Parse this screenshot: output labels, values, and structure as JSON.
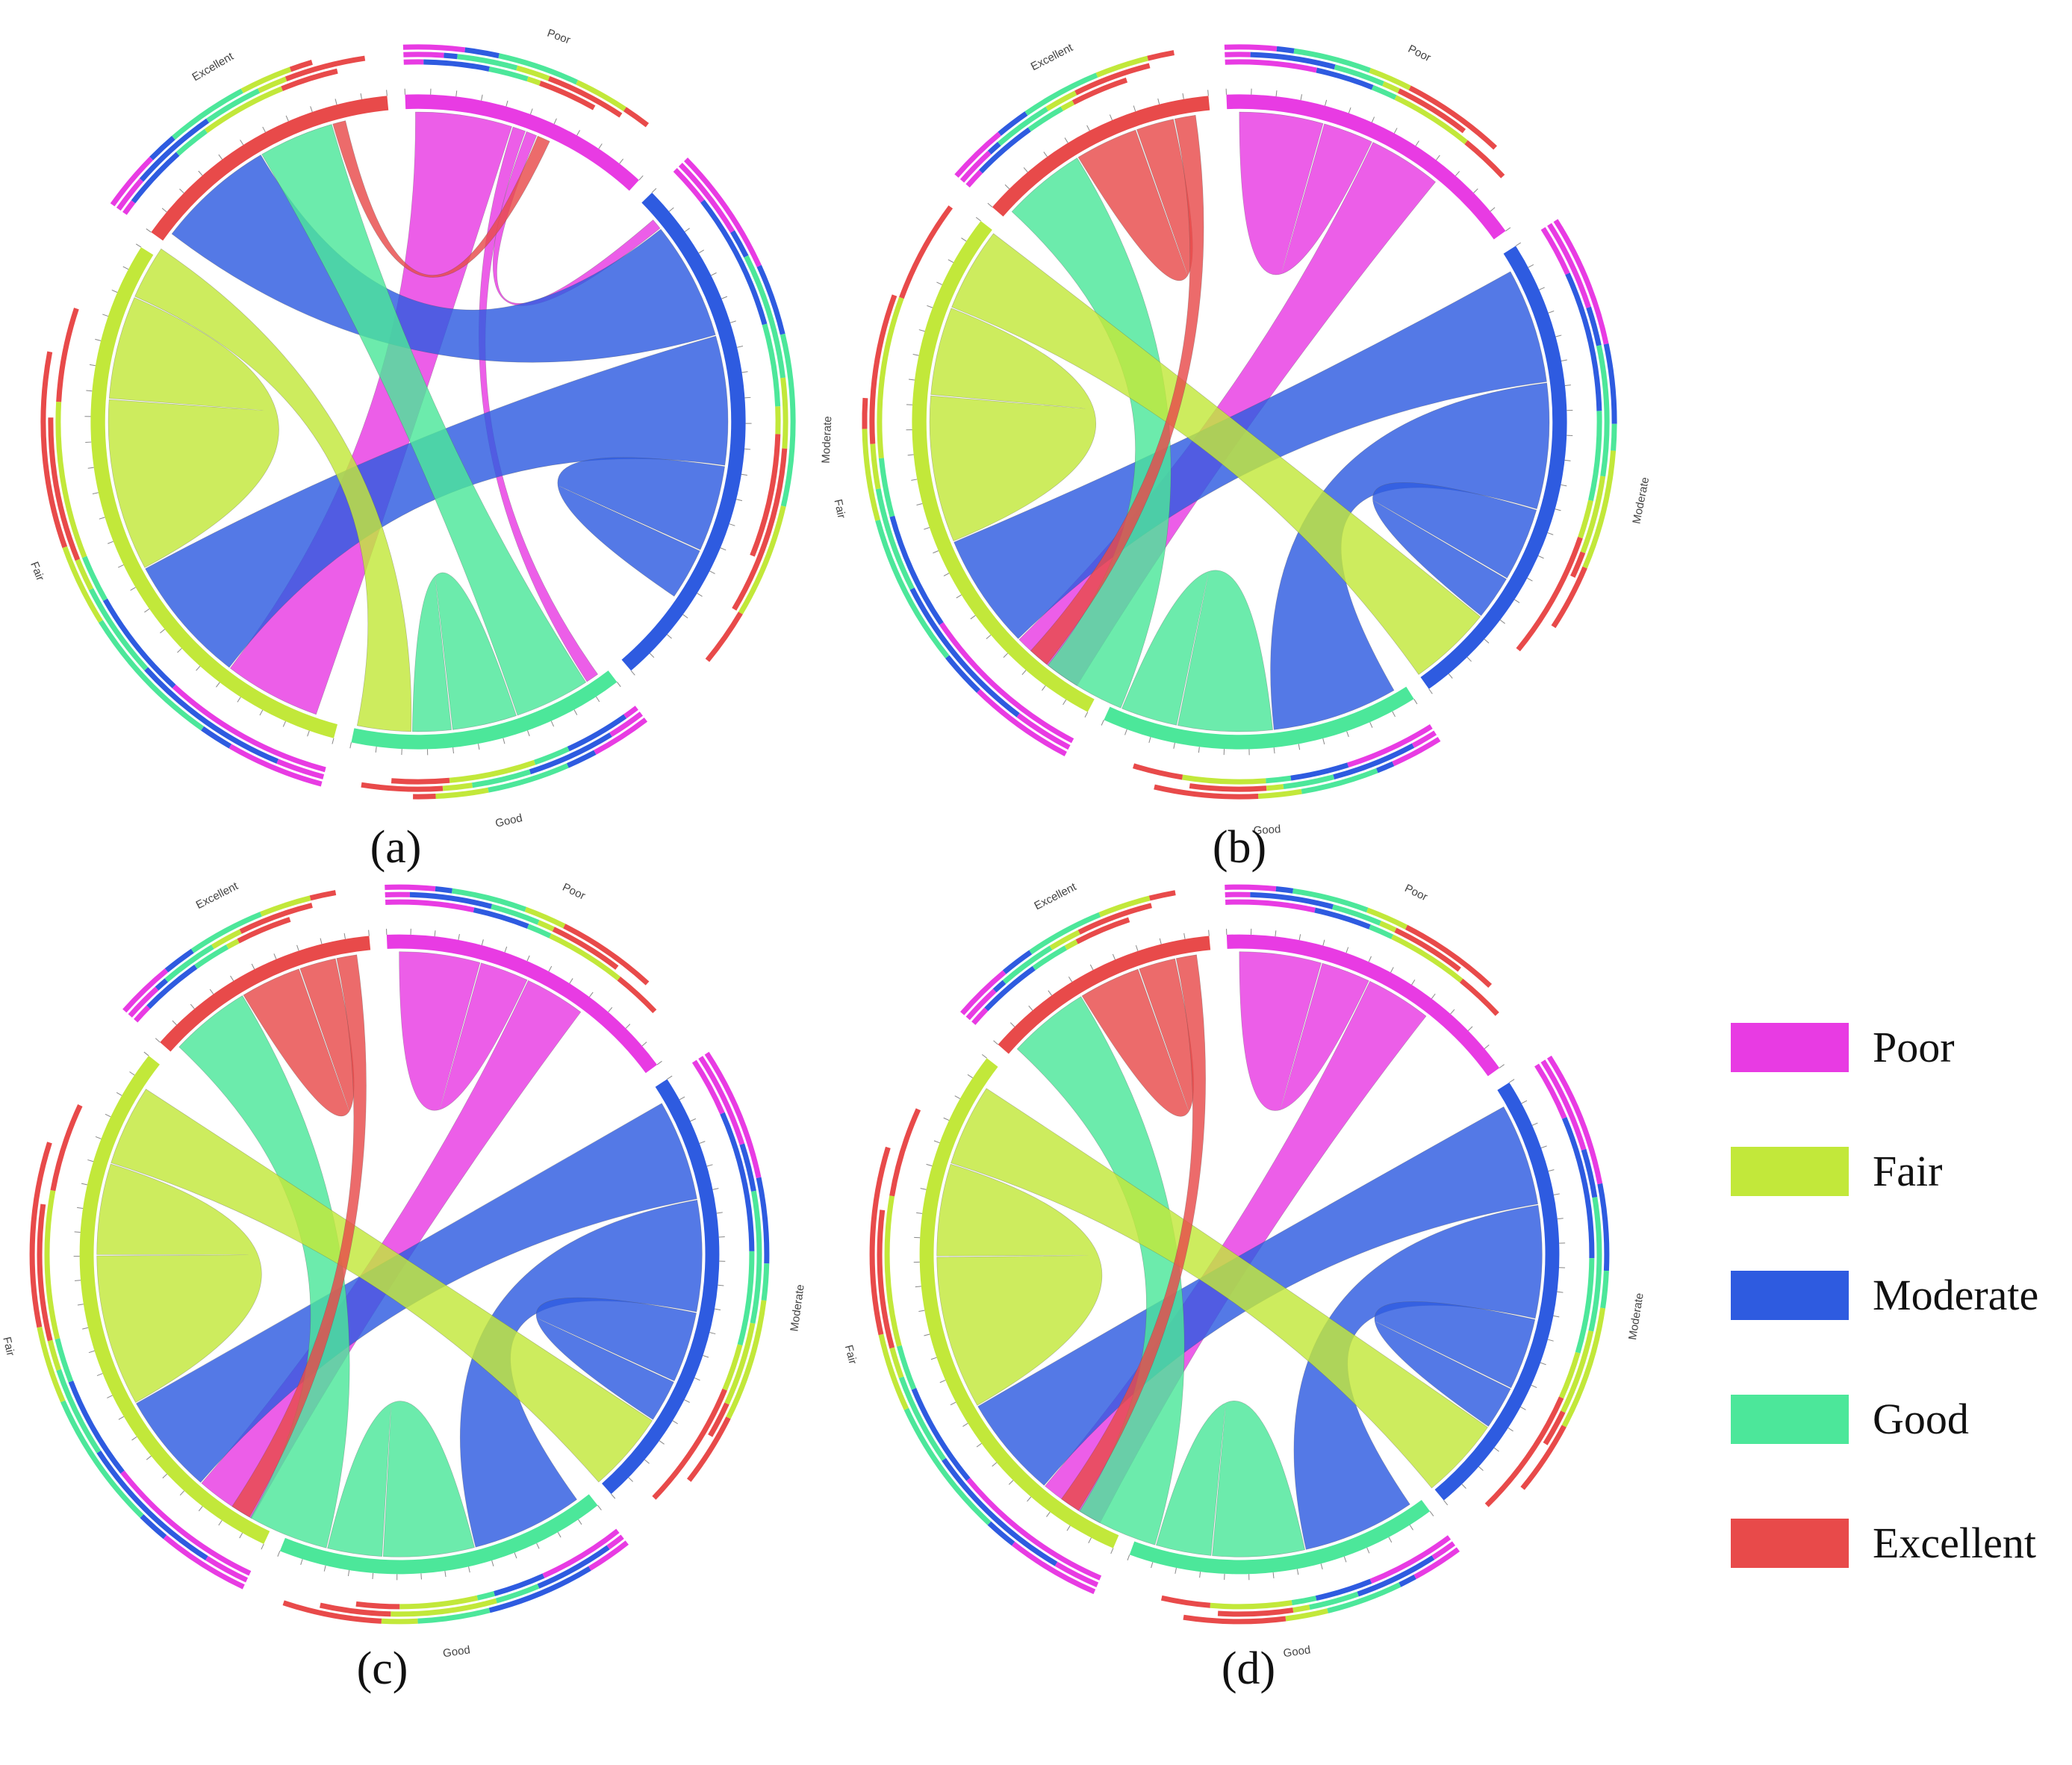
{
  "legend": {
    "items": [
      {
        "name": "Poor",
        "color": "#E83BE3"
      },
      {
        "name": "Fair",
        "color": "#C2E83A"
      },
      {
        "name": "Moderate",
        "color": "#2E5BE0"
      },
      {
        "name": "Good",
        "color": "#4CE79A"
      },
      {
        "name": "Excellent",
        "color": "#E84A4A"
      }
    ]
  },
  "chart_data": [
    {
      "type": "chord",
      "panel_label": "(a)",
      "segments": [
        {
          "name": "Poor",
          "color": "#E83BE3",
          "size": 100
        },
        {
          "name": "Moderate",
          "color": "#2E5BE0",
          "size": 210
        },
        {
          "name": "Good",
          "color": "#4CE79A",
          "size": 110
        },
        {
          "name": "Fair",
          "color": "#C2E83A",
          "size": 240
        },
        {
          "name": "Excellent",
          "color": "#E84A4A",
          "size": 110
        }
      ],
      "flows": [
        {
          "from": "Poor",
          "to": "Fair",
          "value": 45
        },
        {
          "from": "Poor",
          "to": "Good",
          "value": 6
        },
        {
          "from": "Poor",
          "to": "Moderate",
          "value": 5
        },
        {
          "from": "Moderate",
          "to": "Excellent",
          "value": 55
        },
        {
          "from": "Moderate",
          "to": "Fair",
          "value": 60
        },
        {
          "from": "Moderate",
          "to": "Moderate",
          "value": 40
        },
        {
          "from": "Good",
          "to": "Excellent",
          "value": 35
        },
        {
          "from": "Good",
          "to": "Good",
          "value": 30
        },
        {
          "from": "Fair",
          "to": "Fair",
          "value": 80
        },
        {
          "from": "Fair",
          "to": "Good",
          "value": 25
        },
        {
          "from": "Excellent",
          "to": "Poor",
          "value": 6
        }
      ]
    },
    {
      "type": "chord",
      "panel_label": "(b)",
      "segments": [
        {
          "name": "Poor",
          "color": "#E83BE3",
          "size": 130
        },
        {
          "name": "Moderate",
          "color": "#2E5BE0",
          "size": 200
        },
        {
          "name": "Good",
          "color": "#4CE79A",
          "size": 130
        },
        {
          "name": "Fair",
          "color": "#C2E83A",
          "size": 230
        },
        {
          "name": "Excellent",
          "color": "#E84A4A",
          "size": 100
        }
      ],
      "flows": [
        {
          "from": "Poor",
          "to": "Poor",
          "value": 40
        },
        {
          "from": "Poor",
          "to": "Fair",
          "value": 35
        },
        {
          "from": "Moderate",
          "to": "Fair",
          "value": 55
        },
        {
          "from": "Moderate",
          "to": "Good",
          "value": 60
        },
        {
          "from": "Moderate",
          "to": "Moderate",
          "value": 35
        },
        {
          "from": "Good",
          "to": "Good",
          "value": 45
        },
        {
          "from": "Good",
          "to": "Excellent",
          "value": 40
        },
        {
          "from": "Fair",
          "to": "Fair",
          "value": 70
        },
        {
          "from": "Fair",
          "to": "Moderate",
          "value": 40
        },
        {
          "from": "Excellent",
          "to": "Excellent",
          "value": 30
        },
        {
          "from": "Excellent",
          "to": "Good",
          "value": 10
        }
      ]
    },
    {
      "type": "chord",
      "panel_label": "(c)",
      "segments": [
        {
          "name": "Poor",
          "color": "#E83BE3",
          "size": 130
        },
        {
          "name": "Moderate",
          "color": "#2E5BE0",
          "size": 190
        },
        {
          "name": "Good",
          "color": "#4CE79A",
          "size": 140
        },
        {
          "name": "Fair",
          "color": "#C2E83A",
          "size": 240
        },
        {
          "name": "Excellent",
          "color": "#E84A4A",
          "size": 100
        }
      ],
      "flows": [
        {
          "from": "Poor",
          "to": "Poor",
          "value": 40
        },
        {
          "from": "Poor",
          "to": "Fair",
          "value": 30
        },
        {
          "from": "Moderate",
          "to": "Fair",
          "value": 50
        },
        {
          "from": "Moderate",
          "to": "Good",
          "value": 55
        },
        {
          "from": "Moderate",
          "to": "Moderate",
          "value": 35
        },
        {
          "from": "Good",
          "to": "Good",
          "value": 45
        },
        {
          "from": "Good",
          "to": "Excellent",
          "value": 40
        },
        {
          "from": "Fair",
          "to": "Fair",
          "value": 75
        },
        {
          "from": "Fair",
          "to": "Moderate",
          "value": 40
        },
        {
          "from": "Excellent",
          "to": "Excellent",
          "value": 30
        },
        {
          "from": "Excellent",
          "to": "Good",
          "value": 10
        }
      ]
    },
    {
      "type": "chord",
      "panel_label": "(d)",
      "segments": [
        {
          "name": "Poor",
          "color": "#E83BE3",
          "size": 130
        },
        {
          "name": "Moderate",
          "color": "#2E5BE0",
          "size": 190
        },
        {
          "name": "Good",
          "color": "#4CE79A",
          "size": 130
        },
        {
          "name": "Fair",
          "color": "#C2E83A",
          "size": 240
        },
        {
          "name": "Excellent",
          "color": "#E84A4A",
          "size": 100
        }
      ],
      "flows": [
        {
          "from": "Poor",
          "to": "Poor",
          "value": 40
        },
        {
          "from": "Poor",
          "to": "Fair",
          "value": 32
        },
        {
          "from": "Moderate",
          "to": "Fair",
          "value": 50
        },
        {
          "from": "Moderate",
          "to": "Good",
          "value": 55
        },
        {
          "from": "Moderate",
          "to": "Moderate",
          "value": 35
        },
        {
          "from": "Good",
          "to": "Good",
          "value": 45
        },
        {
          "from": "Good",
          "to": "Excellent",
          "value": 40
        },
        {
          "from": "Fair",
          "to": "Fair",
          "value": 75
        },
        {
          "from": "Fair",
          "to": "Moderate",
          "value": 40
        },
        {
          "from": "Excellent",
          "to": "Excellent",
          "value": 30
        },
        {
          "from": "Excellent",
          "to": "Good",
          "value": 10
        }
      ]
    }
  ]
}
